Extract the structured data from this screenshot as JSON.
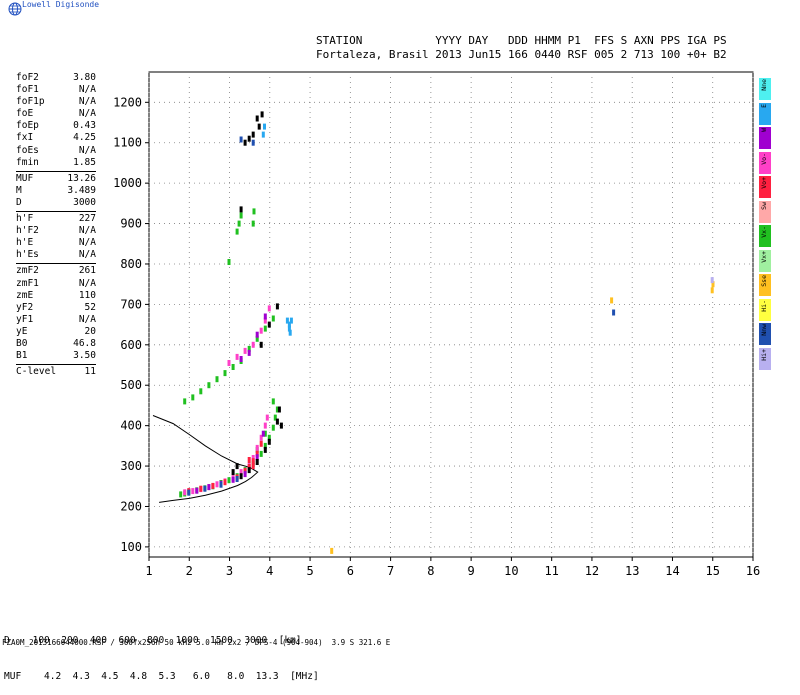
{
  "brand": {
    "name": "Lowell Digisonde"
  },
  "header": {
    "line1": "STATION           YYYY DAY   DDD HHMM P1  FFS S AXN PPS IGA PS",
    "line2": "Fortaleza, Brasil 2013 Jun15 166 0440 RSF 005 2 713 100 +0+ B2"
  },
  "params": {
    "group1": [
      {
        "label": "foF2",
        "value": "3.80"
      },
      {
        "label": "foF1",
        "value": "N/A"
      },
      {
        "label": "foF1p",
        "value": "N/A"
      },
      {
        "label": "foE",
        "value": "N/A"
      },
      {
        "label": "foEp",
        "value": "0.43"
      },
      {
        "label": "fxI",
        "value": "4.25"
      },
      {
        "label": "foEs",
        "value": "N/A"
      },
      {
        "label": "fmin",
        "value": "1.85"
      }
    ],
    "group2": [
      {
        "label": "MUF",
        "value": "13.26"
      },
      {
        "label": "M",
        "value": "3.489"
      },
      {
        "label": "D",
        "value": "3000"
      }
    ],
    "group3": [
      {
        "label": "h'F",
        "value": "227"
      },
      {
        "label": "h'F2",
        "value": "N/A"
      },
      {
        "label": "h'E",
        "value": "N/A"
      },
      {
        "label": "h'Es",
        "value": "N/A"
      }
    ],
    "group4": [
      {
        "label": "zmF2",
        "value": "261"
      },
      {
        "label": "zmF1",
        "value": "N/A"
      },
      {
        "label": "zmE",
        "value": "110"
      },
      {
        "label": "yF2",
        "value": "52"
      },
      {
        "label": "yF1",
        "value": "N/A"
      },
      {
        "label": "yE",
        "value": "20"
      },
      {
        "label": "B0",
        "value": "46.8"
      },
      {
        "label": "B1",
        "value": "3.50"
      }
    ],
    "group5": [
      {
        "label": "C-level",
        "value": "11"
      }
    ]
  },
  "legend": [
    {
      "label": "Nne",
      "color": "#4ef0f0"
    },
    {
      "label": "E",
      "color": "#28a8f0"
    },
    {
      "label": "W",
      "color": "#a000d0"
    },
    {
      "label": "Vo-",
      "color": "#ff40c8"
    },
    {
      "label": "Vo+",
      "color": "#ff2040"
    },
    {
      "label": "Sw",
      "color": "#ffa8a8"
    },
    {
      "label": "Vx-",
      "color": "#20c020"
    },
    {
      "label": "Vx+",
      "color": "#a0f0a0"
    },
    {
      "label": "Sse",
      "color": "#ffc020"
    },
    {
      "label": "Hi-",
      "color": "#ffff40"
    },
    {
      "label": "Nnw",
      "color": "#2050b0"
    },
    {
      "label": "Hi+",
      "color": "#b8b0f0"
    }
  ],
  "mufTable": {
    "dLabel": "D",
    "mufLabel": "MUF",
    "distances": [
      "100",
      "200",
      "400",
      "600",
      "800",
      "1000",
      "1500",
      "3000"
    ],
    "mufs": [
      "4.2",
      "4.3",
      "4.5",
      "4.8",
      "5.3",
      "6.0",
      "8.0",
      "13.3"
    ],
    "dUnit": "[km]",
    "mufUnit": "[MHz]"
  },
  "footer": {
    "text": "FZA0M_2013166044000.RSF / 300fx256h 50 kHz 5.0 km 2x2 / DPS-4 (904-904)  3.9 S 321.6 E"
  },
  "chart_data": {
    "type": "scatter",
    "xlim": [
      1,
      16
    ],
    "ylim": [
      75,
      1275
    ],
    "xticks": [
      1,
      2,
      3,
      4,
      5,
      6,
      7,
      8,
      9,
      10,
      11,
      12,
      13,
      14,
      15,
      16
    ],
    "yticks": [
      100,
      200,
      300,
      400,
      500,
      600,
      700,
      800,
      900,
      1000,
      1100,
      1200
    ],
    "grid": true,
    "series": [
      {
        "color": "#20c020",
        "points": [
          [
            1.8,
            230
          ],
          [
            1.9,
            232
          ],
          [
            2.0,
            236
          ],
          [
            2.2,
            240
          ],
          [
            2.4,
            245
          ],
          [
            2.6,
            250
          ],
          [
            2.8,
            258
          ],
          [
            3.0,
            265
          ],
          [
            3.2,
            275
          ],
          [
            3.4,
            290
          ],
          [
            3.6,
            305
          ],
          [
            3.8,
            330
          ],
          [
            3.9,
            350
          ],
          [
            4.0,
            370
          ],
          [
            4.1,
            395
          ],
          [
            4.15,
            420
          ],
          [
            4.2,
            440
          ],
          [
            4.1,
            460
          ],
          [
            3.9,
            380
          ],
          [
            3.7,
            340
          ],
          [
            1.9,
            460
          ],
          [
            2.1,
            470
          ],
          [
            2.3,
            485
          ],
          [
            2.5,
            500
          ],
          [
            2.7,
            515
          ],
          [
            2.9,
            530
          ],
          [
            3.1,
            545
          ],
          [
            3.3,
            560
          ],
          [
            3.5,
            590
          ],
          [
            3.7,
            615
          ],
          [
            3.9,
            640
          ],
          [
            4.1,
            665
          ],
          [
            3.25,
            900
          ],
          [
            3.3,
            920
          ],
          [
            3.2,
            880
          ],
          [
            3.0,
            805
          ],
          [
            3.6,
            900
          ],
          [
            3.62,
            930
          ]
        ]
      },
      {
        "color": "#ff40c8",
        "points": [
          [
            1.9,
            235
          ],
          [
            2.1,
            238
          ],
          [
            2.3,
            243
          ],
          [
            2.5,
            248
          ],
          [
            2.7,
            255
          ],
          [
            2.9,
            262
          ],
          [
            3.1,
            270
          ],
          [
            3.3,
            285
          ],
          [
            3.5,
            300
          ],
          [
            3.6,
            320
          ],
          [
            3.7,
            345
          ],
          [
            3.8,
            370
          ],
          [
            3.9,
            400
          ],
          [
            3.95,
            420
          ],
          [
            3.0,
            555
          ],
          [
            3.2,
            570
          ],
          [
            3.4,
            585
          ],
          [
            3.6,
            600
          ],
          [
            3.8,
            635
          ],
          [
            3.9,
            660
          ],
          [
            4.0,
            690
          ]
        ]
      },
      {
        "color": "#ff2040",
        "points": [
          [
            2.0,
            238
          ],
          [
            2.3,
            244
          ],
          [
            2.6,
            251
          ],
          [
            2.9,
            260
          ],
          [
            3.2,
            272
          ],
          [
            3.4,
            288
          ],
          [
            3.5,
            298
          ],
          [
            3.6,
            312
          ],
          [
            3.7,
            330
          ],
          [
            3.8,
            355
          ],
          [
            3.6,
            300
          ],
          [
            3.5,
            315
          ]
        ]
      },
      {
        "color": "#a000d0",
        "points": [
          [
            2.2,
            239
          ],
          [
            2.5,
            248
          ],
          [
            2.8,
            256
          ],
          [
            3.1,
            266
          ],
          [
            3.4,
            280
          ],
          [
            3.7,
            322
          ],
          [
            3.85,
            380
          ],
          [
            3.3,
            565
          ],
          [
            3.5,
            580
          ],
          [
            3.7,
            625
          ],
          [
            3.9,
            670
          ]
        ]
      },
      {
        "color": "#000000",
        "points": [
          [
            3.3,
            275
          ],
          [
            3.5,
            290
          ],
          [
            3.7,
            310
          ],
          [
            3.9,
            340
          ],
          [
            4.0,
            360
          ],
          [
            4.2,
            410
          ],
          [
            4.25,
            440
          ],
          [
            4.3,
            400
          ],
          [
            3.1,
            285
          ],
          [
            3.2,
            300
          ],
          [
            3.8,
            600
          ],
          [
            4.0,
            650
          ],
          [
            4.2,
            695
          ],
          [
            3.4,
            1100
          ],
          [
            3.5,
            1110
          ],
          [
            3.6,
            1120
          ],
          [
            3.75,
            1140
          ],
          [
            3.7,
            1160
          ],
          [
            3.82,
            1170
          ],
          [
            3.3,
            935
          ]
        ]
      },
      {
        "color": "#2050b0",
        "points": [
          [
            2.0,
            234
          ],
          [
            2.4,
            244
          ],
          [
            2.8,
            254
          ],
          [
            3.2,
            268
          ],
          [
            3.3,
            1108
          ],
          [
            3.6,
            1100
          ],
          [
            12.55,
            680
          ]
        ]
      },
      {
        "color": "#28a8f0",
        "points": [
          [
            4.45,
            660
          ],
          [
            4.5,
            650
          ],
          [
            4.5,
            640
          ],
          [
            4.52,
            630
          ],
          [
            4.55,
            660
          ],
          [
            3.85,
            1120
          ],
          [
            3.88,
            1140
          ]
        ]
      },
      {
        "color": "#ffc020",
        "points": [
          [
            12.5,
            710
          ],
          [
            15.0,
            735
          ],
          [
            15.02,
            750
          ],
          [
            5.55,
            90
          ]
        ]
      },
      {
        "color": "#b8b0f0",
        "points": [
          [
            15.0,
            760
          ]
        ]
      }
    ]
  },
  "tracing": {
    "points": [
      [
        1.25,
        210
      ],
      [
        1.6,
        215
      ],
      [
        2.0,
        220
      ],
      [
        2.4,
        228
      ],
      [
        2.8,
        238
      ],
      [
        3.2,
        252
      ],
      [
        3.4,
        262
      ],
      [
        3.55,
        272
      ],
      [
        3.7,
        285
      ],
      [
        3.5,
        297
      ],
      [
        3.2,
        305
      ],
      [
        2.8,
        325
      ],
      [
        2.4,
        350
      ],
      [
        2.0,
        378
      ],
      [
        1.6,
        405
      ],
      [
        1.1,
        425
      ]
    ]
  }
}
